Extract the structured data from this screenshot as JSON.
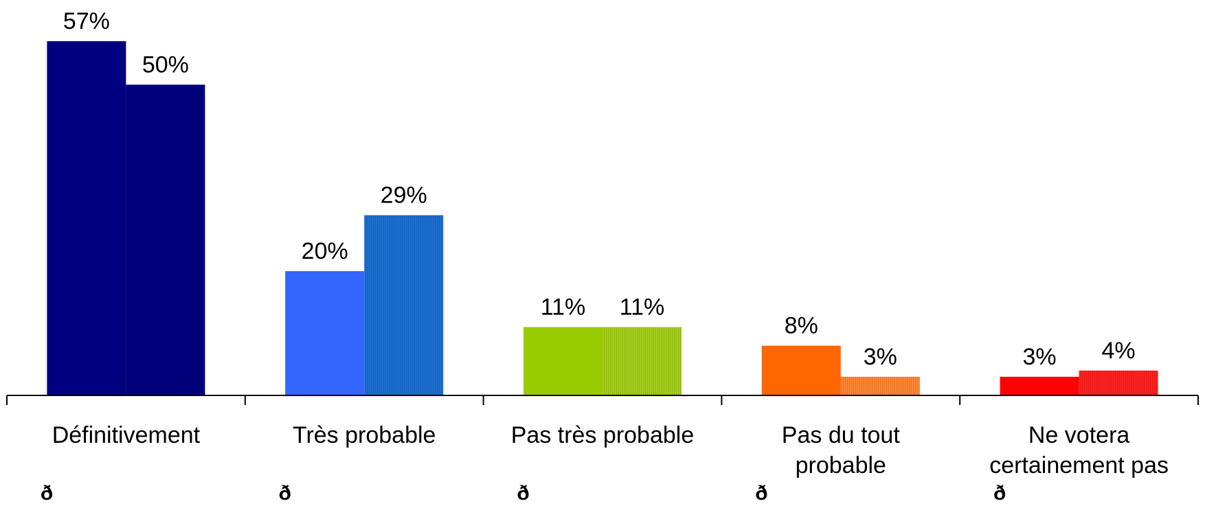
{
  "chart_data": {
    "type": "bar",
    "title": "",
    "xlabel": "",
    "ylabel": "",
    "ylim": [
      0,
      57
    ],
    "grid": false,
    "legend": "none",
    "categories": [
      [
        "Définitivement"
      ],
      [
        "Très probable"
      ],
      [
        "Pas très probable"
      ],
      [
        "Pas du tout",
        "probable"
      ],
      [
        "Ne votera",
        "certainement pas"
      ]
    ],
    "series": [
      {
        "values": [
          57,
          20,
          11,
          8,
          3
        ],
        "labels": [
          "57%",
          "20%",
          "11%",
          "8%",
          "3%"
        ]
      },
      {
        "values": [
          50,
          29,
          11,
          3,
          4
        ],
        "labels": [
          "50%",
          "29%",
          "11%",
          "3%",
          "4%"
        ]
      }
    ],
    "colors": [
      [
        "#000080",
        "#000080"
      ],
      [
        "#3366ff",
        "#1a6fd1"
      ],
      [
        "#99cc00",
        "#a3cf1a"
      ],
      [
        "#ff6600",
        "#ff8533"
      ],
      [
        "#ff0000",
        "#ff2020"
      ]
    ],
    "extra_labels": [
      "ð",
      "ð",
      "ð",
      "ð",
      "ð"
    ]
  }
}
